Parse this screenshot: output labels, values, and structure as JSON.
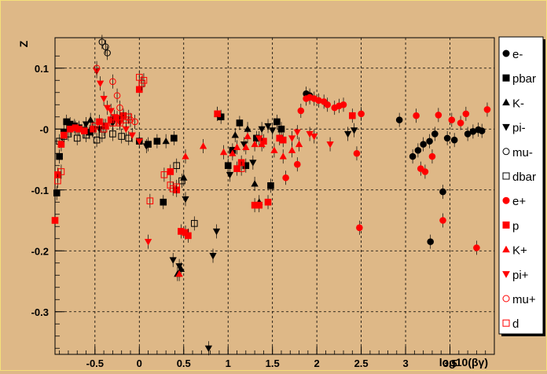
{
  "chart_data": {
    "type": "scatter",
    "title": "",
    "xlabel": "log10(βγ)",
    "ylabel": "Z",
    "xlim": [
      -0.95,
      4.0
    ],
    "ylim": [
      -0.37,
      0.15
    ],
    "xticks": [
      -0.5,
      0,
      0.5,
      1,
      1.5,
      2,
      2.5,
      3,
      3.5
    ],
    "xtick_labels": [
      "-0.5",
      "0",
      "0.5",
      "1",
      "1.5",
      "2",
      "2.5",
      "3",
      "3.5"
    ],
    "yticks": [
      0.1,
      0,
      -0.1,
      -0.2,
      -0.3
    ],
    "ytick_labels": [
      "0.1",
      "-0",
      "-0.1",
      "-0.2",
      "-0.3"
    ],
    "grid": true,
    "legend_position": "right",
    "series": [
      {
        "name": "e-",
        "color": "#000000",
        "marker": "circle",
        "filled": true,
        "points": [
          [
            1.88,
            0.058
          ],
          [
            1.92,
            0.055
          ],
          [
            2.93,
            0.015
          ],
          [
            3.08,
            -0.045
          ],
          [
            3.14,
            -0.035
          ],
          [
            3.2,
            -0.025
          ],
          [
            3.27,
            -0.02
          ],
          [
            3.28,
            -0.185
          ],
          [
            3.33,
            -0.008
          ],
          [
            3.42,
            -0.103
          ],
          [
            3.47,
            -0.015
          ],
          [
            3.55,
            -0.018
          ],
          [
            3.7,
            -0.008
          ],
          [
            3.76,
            -0.004
          ],
          [
            3.82,
            -0.001
          ],
          [
            3.86,
            -0.003
          ]
        ]
      },
      {
        "name": "pbar",
        "color": "#000000",
        "marker": "square",
        "filled": true,
        "points": [
          [
            -0.93,
            -0.105
          ],
          [
            -0.9,
            -0.045
          ],
          [
            -0.85,
            -0.005
          ],
          [
            -0.82,
            0.012
          ],
          [
            -0.78,
            0.008
          ],
          [
            -0.73,
            0.005
          ],
          [
            -0.68,
            0.002
          ],
          [
            -0.62,
            -0.002
          ],
          [
            -0.56,
            -0.005
          ],
          [
            0.0,
            -0.02
          ],
          [
            0.1,
            -0.025
          ],
          [
            0.2,
            -0.02
          ],
          [
            0.27,
            -0.12
          ],
          [
            0.39,
            -0.015
          ],
          [
            0.92,
            0.02
          ],
          [
            1.0,
            -0.06
          ],
          [
            1.05,
            -0.035
          ],
          [
            1.13,
            0.01
          ],
          [
            1.2,
            -0.06
          ],
          [
            1.32,
            -0.015
          ],
          [
            1.48,
            -0.093
          ],
          [
            1.55,
            0.012
          ],
          [
            1.6,
            0.0
          ]
        ]
      },
      {
        "name": "K-",
        "color": "#000000",
        "marker": "triangle-up",
        "filled": true,
        "points": [
          [
            -0.55,
            0.015
          ],
          [
            -0.4,
            0.005
          ],
          [
            0.3,
            -0.02
          ],
          [
            0.43,
            -0.238
          ],
          [
            0.47,
            -0.23
          ],
          [
            0.5,
            -0.08
          ],
          [
            1.08,
            -0.01
          ],
          [
            1.22,
            0.0
          ],
          [
            1.3,
            -0.09
          ],
          [
            1.35,
            -0.12
          ]
        ]
      },
      {
        "name": "pi-",
        "color": "#000000",
        "marker": "triangle-down",
        "filled": true,
        "points": [
          [
            -0.6,
            0.008
          ],
          [
            -0.53,
            -0.002
          ],
          [
            -0.45,
            0.0
          ],
          [
            -0.3,
            0.01
          ],
          [
            0.08,
            -0.028
          ],
          [
            0.38,
            -0.215
          ],
          [
            0.45,
            -0.225
          ],
          [
            0.52,
            -0.115
          ],
          [
            0.78,
            -0.36
          ],
          [
            0.83,
            -0.208
          ],
          [
            0.87,
            -0.168
          ],
          [
            1.02,
            -0.075
          ],
          [
            1.18,
            -0.025
          ],
          [
            1.28,
            -0.055
          ],
          [
            1.38,
            0.0
          ],
          [
            1.45,
            0.005
          ],
          [
            1.5,
            -0.002
          ],
          [
            2.35,
            -0.008
          ],
          [
            2.42,
            -0.002
          ]
        ]
      },
      {
        "name": "mu-",
        "color": "#000000",
        "marker": "circle",
        "filled": false,
        "points": [
          [
            -0.42,
            0.143
          ],
          [
            -0.38,
            0.135
          ],
          [
            -0.36,
            0.125
          ]
        ]
      },
      {
        "name": "dbar",
        "color": "#000000",
        "marker": "square",
        "filled": false,
        "points": [
          [
            -0.9,
            -0.02
          ],
          [
            -0.85,
            -0.012
          ],
          [
            -0.8,
            -0.008
          ],
          [
            -0.7,
            -0.015
          ],
          [
            -0.6,
            -0.01
          ],
          [
            -0.48,
            -0.018
          ],
          [
            -0.42,
            -0.01
          ],
          [
            -0.3,
            -0.008
          ],
          [
            -0.2,
            -0.012
          ],
          [
            -0.12,
            -0.015
          ],
          [
            0.42,
            -0.06
          ],
          [
            0.48,
            -0.085
          ],
          [
            0.62,
            -0.155
          ]
        ]
      },
      {
        "name": "e+",
        "color": "#ff0000",
        "marker": "circle",
        "filled": true,
        "points": [
          [
            1.65,
            -0.08
          ],
          [
            1.78,
            -0.058
          ],
          [
            1.82,
            0.03
          ],
          [
            1.88,
            0.05
          ],
          [
            1.92,
            0.052
          ],
          [
            1.97,
            0.05
          ],
          [
            2.02,
            0.047
          ],
          [
            2.08,
            0.045
          ],
          [
            2.12,
            0.04
          ],
          [
            2.2,
            0.035
          ],
          [
            2.25,
            0.038
          ],
          [
            2.3,
            0.04
          ],
          [
            2.45,
            -0.04
          ],
          [
            2.48,
            -0.162
          ],
          [
            2.5,
            0.025
          ],
          [
            3.12,
            0.022
          ],
          [
            3.17,
            -0.065
          ],
          [
            3.22,
            -0.07
          ],
          [
            3.3,
            -0.045
          ],
          [
            3.37,
            0.023
          ],
          [
            3.42,
            -0.15
          ],
          [
            3.52,
            0.015
          ],
          [
            3.62,
            0.01
          ],
          [
            3.68,
            0.025
          ],
          [
            3.8,
            -0.195
          ],
          [
            3.92,
            0.032
          ]
        ]
      },
      {
        "name": "p",
        "color": "#ff0000",
        "marker": "square",
        "filled": true,
        "points": [
          [
            -0.95,
            -0.15
          ],
          [
            -0.92,
            -0.075
          ],
          [
            -0.88,
            -0.025
          ],
          [
            -0.85,
            -0.01
          ],
          [
            -0.78,
            0.0
          ],
          [
            -0.72,
            0.002
          ],
          [
            -0.68,
            0.0
          ],
          [
            -0.62,
            -0.003
          ],
          [
            -0.52,
            0.0
          ],
          [
            -0.45,
            0.012
          ],
          [
            -0.38,
            0.005
          ],
          [
            -0.32,
            0.015
          ],
          [
            -0.25,
            0.018
          ],
          [
            -0.18,
            0.022
          ],
          [
            0.0,
            0.065
          ],
          [
            0.35,
            -0.07
          ],
          [
            0.42,
            -0.1
          ],
          [
            0.47,
            -0.168
          ],
          [
            0.52,
            -0.17
          ],
          [
            0.55,
            -0.175
          ],
          [
            0.88,
            0.025
          ],
          [
            1.1,
            -0.065
          ],
          [
            1.15,
            -0.055
          ],
          [
            1.3,
            -0.125
          ],
          [
            1.35,
            -0.125
          ],
          [
            1.4,
            -0.02
          ],
          [
            1.45,
            -0.12
          ],
          [
            1.58,
            -0.015
          ],
          [
            1.62,
            -0.018
          ],
          [
            2.4,
            0.022
          ]
        ]
      },
      {
        "name": "K+",
        "color": "#ff0000",
        "marker": "triangle-up",
        "filled": true,
        "points": [
          [
            0.45,
            -0.238
          ],
          [
            0.52,
            -0.045
          ],
          [
            0.72,
            -0.028
          ],
          [
            0.88,
            0.025
          ],
          [
            0.95,
            -0.038
          ],
          [
            1.05,
            -0.04
          ],
          [
            1.1,
            -0.03
          ],
          [
            1.2,
            -0.03
          ],
          [
            1.22,
            -0.012
          ],
          [
            1.3,
            -0.025
          ],
          [
            1.38,
            -0.025
          ],
          [
            1.52,
            -0.035
          ],
          [
            1.62,
            -0.045
          ],
          [
            1.72,
            -0.035
          ],
          [
            1.8,
            -0.025
          ]
        ]
      },
      {
        "name": "pi+",
        "color": "#ff0000",
        "marker": "triangle-down",
        "filled": true,
        "points": [
          [
            -0.48,
            0.095
          ],
          [
            -0.44,
            0.075
          ],
          [
            -0.4,
            0.05
          ],
          [
            -0.36,
            0.035
          ],
          [
            -0.32,
            0.03
          ],
          [
            -0.28,
            0.02
          ],
          [
            -0.22,
            0.01
          ],
          [
            -0.15,
            0.0
          ],
          [
            -0.08,
            -0.01
          ],
          [
            0.0,
            -0.02
          ],
          [
            0.1,
            -0.185
          ],
          [
            1.35,
            -0.015
          ],
          [
            1.72,
            -0.015
          ],
          [
            1.78,
            -0.005
          ],
          [
            1.92,
            -0.008
          ],
          [
            1.97,
            -0.012
          ],
          [
            2.15,
            -0.025
          ]
        ]
      },
      {
        "name": "mu+",
        "color": "#ff0000",
        "marker": "circle",
        "filled": false,
        "points": [
          [
            -0.48,
            0.1
          ],
          [
            -0.3,
            0.078
          ],
          [
            -0.25,
            0.055
          ],
          [
            -0.22,
            0.035
          ],
          [
            -0.18,
            0.02
          ],
          [
            -0.1,
            0.015
          ],
          [
            -0.05,
            0.012
          ]
        ]
      },
      {
        "name": "d",
        "color": "#ff0000",
        "marker": "square",
        "filled": false,
        "points": [
          [
            -0.92,
            -0.085
          ],
          [
            -0.88,
            -0.07
          ],
          [
            -0.5,
            0.005
          ],
          [
            -0.4,
            0.0
          ],
          [
            -0.3,
            0.01
          ],
          [
            -0.22,
            0.01
          ],
          [
            -0.15,
            0.015
          ],
          [
            -0.12,
            0.02
          ],
          [
            0.0,
            0.085
          ],
          [
            0.03,
            0.075
          ],
          [
            0.05,
            0.08
          ],
          [
            0.12,
            -0.118
          ],
          [
            0.28,
            -0.075
          ],
          [
            0.35,
            -0.092
          ],
          [
            0.38,
            -0.098
          ],
          [
            0.42,
            -0.095
          ],
          [
            1.15,
            -0.065
          ]
        ]
      }
    ]
  }
}
